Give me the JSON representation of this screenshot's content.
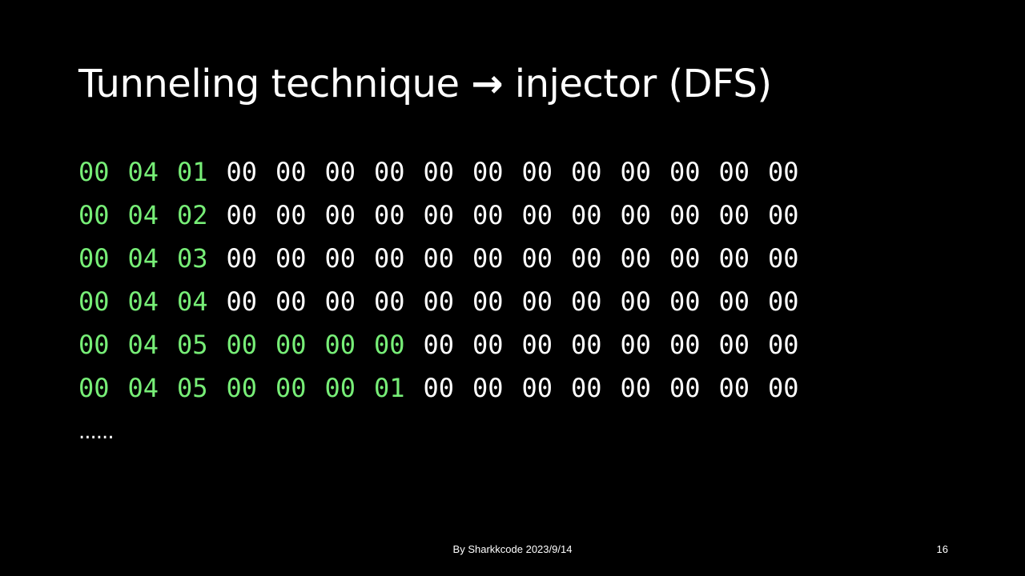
{
  "slide": {
    "title_prefix": "Tunneling technique",
    "title_arrow": "→",
    "title_suffix": "injector (DFS)",
    "footer": "By Sharkkcode  2023/9/14",
    "slide_number": "16",
    "ellipsis": "......"
  },
  "colors": {
    "background": "#000000",
    "text": "#ffffff",
    "highlight": "#77ee77"
  },
  "hex_rows": [
    {
      "bytes": [
        "00",
        "04",
        "01",
        "00",
        "00",
        "00",
        "00",
        "00",
        "00",
        "00",
        "00",
        "00",
        "00",
        "00",
        "00"
      ],
      "highlight_count": 3
    },
    {
      "bytes": [
        "00",
        "04",
        "02",
        "00",
        "00",
        "00",
        "00",
        "00",
        "00",
        "00",
        "00",
        "00",
        "00",
        "00",
        "00"
      ],
      "highlight_count": 3
    },
    {
      "bytes": [
        "00",
        "04",
        "03",
        "00",
        "00",
        "00",
        "00",
        "00",
        "00",
        "00",
        "00",
        "00",
        "00",
        "00",
        "00"
      ],
      "highlight_count": 3
    },
    {
      "bytes": [
        "00",
        "04",
        "04",
        "00",
        "00",
        "00",
        "00",
        "00",
        "00",
        "00",
        "00",
        "00",
        "00",
        "00",
        "00"
      ],
      "highlight_count": 3
    },
    {
      "bytes": [
        "00",
        "04",
        "05",
        "00",
        "00",
        "00",
        "00",
        "00",
        "00",
        "00",
        "00",
        "00",
        "00",
        "00",
        "00"
      ],
      "highlight_count": 7
    },
    {
      "bytes": [
        "00",
        "04",
        "05",
        "00",
        "00",
        "00",
        "01",
        "00",
        "00",
        "00",
        "00",
        "00",
        "00",
        "00",
        "00"
      ],
      "highlight_count": 7
    }
  ]
}
